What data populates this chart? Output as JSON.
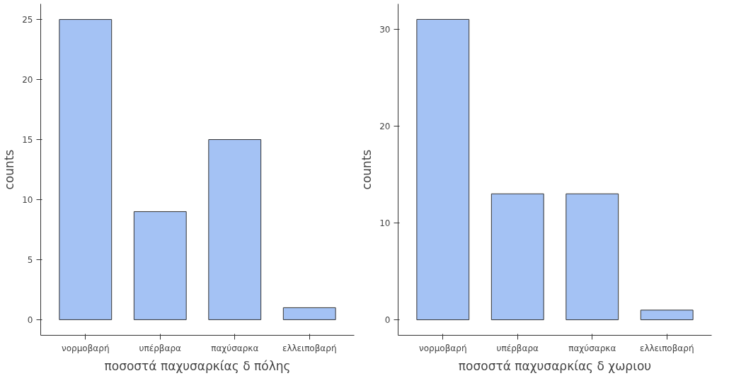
{
  "chart_data": [
    {
      "type": "bar",
      "xlabel": "ποσοστά παχυσαρκίας δ πόλης",
      "ylabel": "counts",
      "categories": [
        "νορμοβαρή",
        "υπέρβαρα",
        "παχύσαρκα",
        "ελλειποβαρή"
      ],
      "values": [
        25,
        9,
        15,
        1
      ],
      "color": "#a4c2f4",
      "ylim": [
        -1.3,
        26.3
      ],
      "yticks": [
        0,
        5,
        10,
        15,
        20,
        25
      ],
      "grid": false
    },
    {
      "type": "bar",
      "xlabel": "ποσοστά παχυσαρκίας δ χωριου",
      "ylabel": "counts",
      "categories": [
        "νορμοβαρή",
        "υπέρβαρα",
        "παχύσαρκα",
        "ελλειποβαρή"
      ],
      "values": [
        31,
        13,
        13,
        1
      ],
      "color": "#a4c2f4",
      "ylim": [
        -1.6,
        32.6
      ],
      "yticks": [
        0,
        10,
        20,
        30
      ],
      "grid": false
    }
  ]
}
